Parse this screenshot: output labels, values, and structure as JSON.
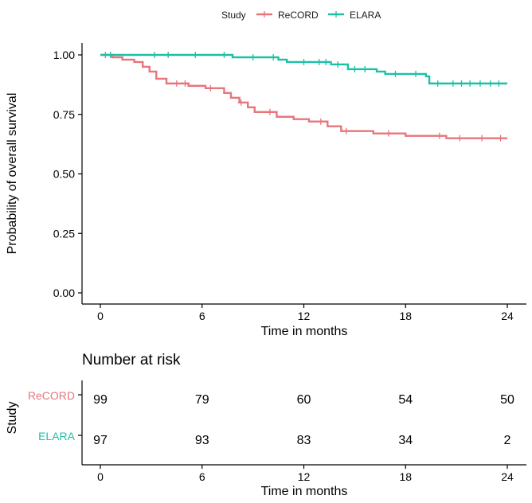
{
  "chart_data": [
    {
      "type": "line",
      "subtype": "kaplan-meier",
      "title": "",
      "xlabel": "Time in months",
      "ylabel": "Probability of overall survival",
      "xlim": [
        0,
        24
      ],
      "ylim": [
        0,
        1
      ],
      "x_ticks": [
        0,
        6,
        12,
        18,
        24
      ],
      "y_ticks": [
        0.0,
        0.25,
        0.5,
        0.75,
        1.0
      ],
      "y_tick_labels": [
        "0.00",
        "0.25",
        "0.50",
        "0.75",
        "1.00"
      ],
      "legend": {
        "title": "Study",
        "placement": "top",
        "entries": [
          "ReCORD",
          "ELARA"
        ]
      },
      "series": [
        {
          "name": "ReCORD",
          "color": "#e7757c",
          "steps": [
            [
              0,
              1.0
            ],
            [
              0.7,
              0.99
            ],
            [
              1.3,
              0.98
            ],
            [
              2.0,
              0.97
            ],
            [
              2.5,
              0.95
            ],
            [
              2.9,
              0.93
            ],
            [
              3.3,
              0.9
            ],
            [
              3.9,
              0.88
            ],
            [
              5.2,
              0.87
            ],
            [
              6.2,
              0.86
            ],
            [
              7.3,
              0.84
            ],
            [
              7.7,
              0.82
            ],
            [
              8.2,
              0.8
            ],
            [
              8.7,
              0.78
            ],
            [
              9.1,
              0.76
            ],
            [
              10.4,
              0.74
            ],
            [
              11.4,
              0.73
            ],
            [
              12.3,
              0.72
            ],
            [
              13.4,
              0.7
            ],
            [
              14.2,
              0.68
            ],
            [
              16.1,
              0.67
            ],
            [
              18.0,
              0.66
            ],
            [
              20.4,
              0.65
            ],
            [
              24,
              0.65
            ]
          ],
          "censor_times": [
            0.3,
            4.5,
            5.0,
            6.5,
            8.3,
            10.0,
            13.0,
            14.5,
            17.0,
            20.0,
            21.2,
            22.5,
            23.6
          ]
        },
        {
          "name": "ELARA",
          "color": "#1fbfa6",
          "steps": [
            [
              0,
              1.0
            ],
            [
              7.8,
              0.99
            ],
            [
              10.5,
              0.98
            ],
            [
              11.0,
              0.97
            ],
            [
              13.6,
              0.96
            ],
            [
              14.6,
              0.94
            ],
            [
              16.3,
              0.93
            ],
            [
              16.8,
              0.92
            ],
            [
              19.2,
              0.91
            ],
            [
              19.4,
              0.88
            ],
            [
              24,
              0.88
            ]
          ],
          "censor_times": [
            0.6,
            3.2,
            4.0,
            5.6,
            7.3,
            9.0,
            10.2,
            12.0,
            12.9,
            13.3,
            14.0,
            15.0,
            15.6,
            17.4,
            18.6,
            19.9,
            20.8,
            21.3,
            21.8,
            22.4,
            23.0,
            23.5
          ]
        }
      ]
    },
    {
      "type": "table",
      "title": "Number at risk",
      "ylabel": "Study",
      "xlabel": "Time in months",
      "x_ticks": [
        0,
        6,
        12,
        18,
        24
      ],
      "rows": [
        {
          "label": "ReCORD",
          "color": "#e7757c",
          "values": [
            "99",
            "79",
            "60",
            "54",
            "50"
          ]
        },
        {
          "label": "ELARA",
          "color": "#1fbfa6",
          "values": [
            "97",
            "93",
            "83",
            "34",
            "2"
          ]
        }
      ]
    }
  ]
}
